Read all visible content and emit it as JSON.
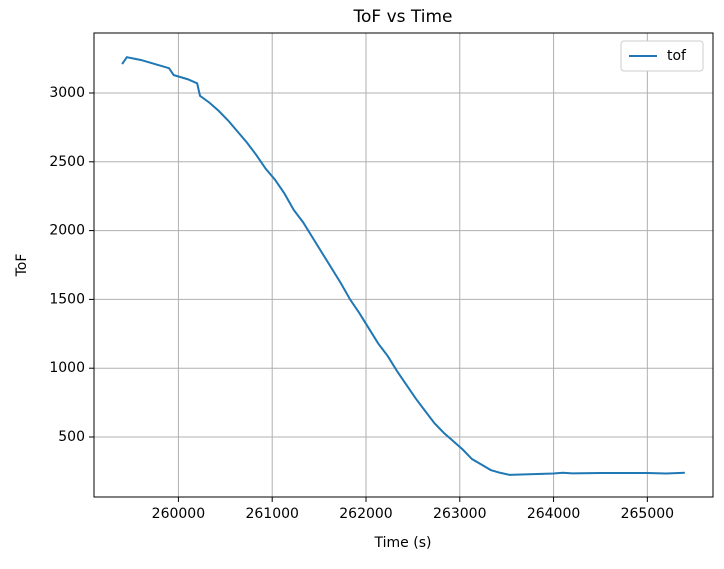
{
  "chart_data": {
    "type": "line",
    "title": "ToF vs Time",
    "x_label": "Time (s)",
    "y_label": "ToF",
    "x": [
      259400,
      259450,
      259600,
      259700,
      259800,
      259900,
      259950,
      260100,
      260200,
      260230,
      260330,
      260430,
      260530,
      260630,
      260730,
      260830,
      260930,
      261030,
      261130,
      261230,
      261330,
      261430,
      261530,
      261630,
      261730,
      261830,
      261930,
      262030,
      262130,
      262230,
      262330,
      262430,
      262530,
      262630,
      262730,
      262830,
      262930,
      263030,
      263130,
      263230,
      263330,
      263430,
      263530,
      263700,
      264000,
      264100,
      264200,
      264500,
      265000,
      265200,
      265400
    ],
    "series": [
      {
        "name": "tof",
        "color": "#1f77b4",
        "values": [
          3210,
          3260,
          3240,
          3220,
          3200,
          3180,
          3130,
          3100,
          3070,
          2980,
          2930,
          2870,
          2800,
          2720,
          2640,
          2550,
          2450,
          2370,
          2270,
          2150,
          2060,
          1950,
          1840,
          1730,
          1620,
          1500,
          1400,
          1290,
          1180,
          1090,
          980,
          880,
          780,
          690,
          600,
          530,
          470,
          410,
          340,
          300,
          260,
          240,
          225,
          228,
          235,
          240,
          236,
          238,
          238,
          235,
          240
        ]
      }
    ],
    "xlim": [
      259100,
      265700
    ],
    "ylim": [
      64,
      3436
    ],
    "xticks": [
      260000,
      261000,
      262000,
      263000,
      264000,
      265000
    ],
    "yticks": [
      500,
      1000,
      1500,
      2000,
      2500,
      3000
    ],
    "grid": true,
    "legend": "upper-right"
  }
}
